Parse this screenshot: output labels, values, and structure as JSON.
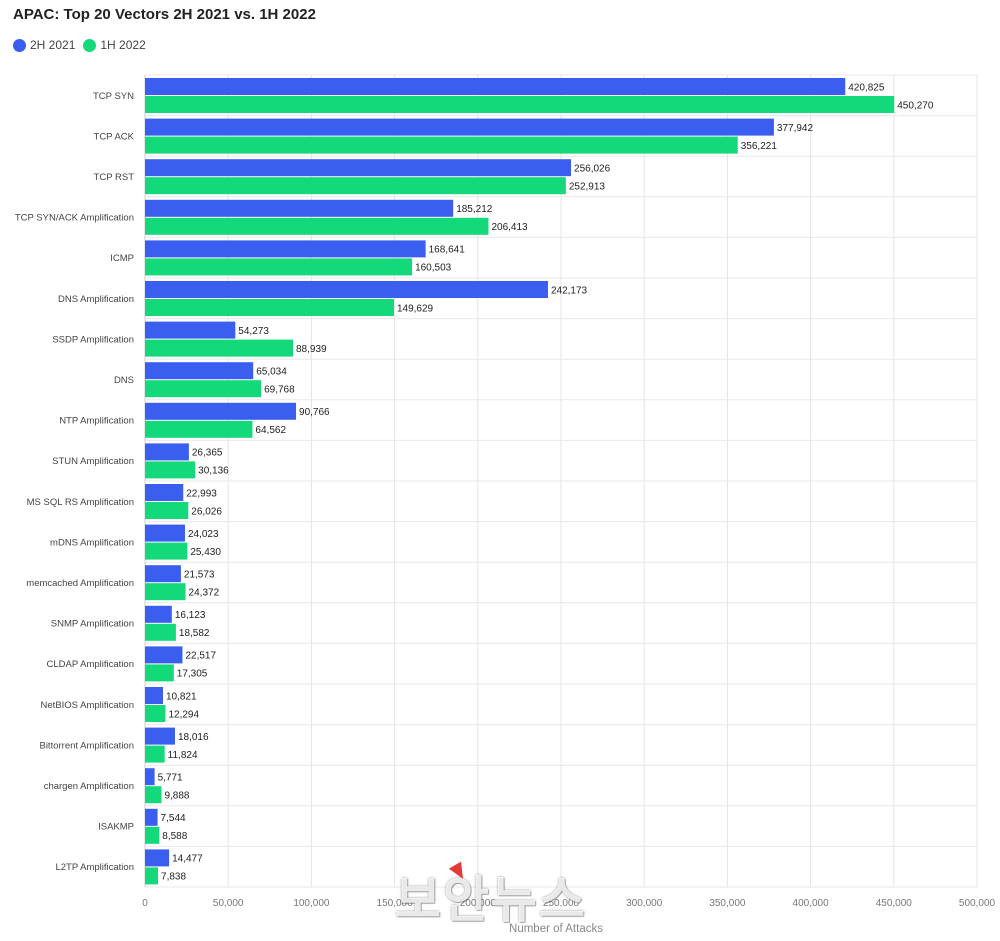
{
  "chart_data": {
    "type": "bar",
    "orientation": "horizontal",
    "title": "APAC: Top 20 Vectors 2H 2021 vs. 1H 2022",
    "xlabel": "Number of Attacks",
    "ylabel": "",
    "xlim": [
      0,
      500000
    ],
    "xticks": [
      0,
      50000,
      100000,
      150000,
      200000,
      250000,
      300000,
      350000,
      400000,
      450000,
      500000
    ],
    "xtick_labels": [
      "0",
      "50,000",
      "100,000",
      "150,000",
      "200,000",
      "250,000",
      "300,000",
      "350,000",
      "400,000",
      "450,000",
      "500,000"
    ],
    "grid": true,
    "legend_position": "top-left",
    "categories": [
      "TCP SYN",
      "TCP ACK",
      "TCP RST",
      "TCP SYN/ACK Amplification",
      "ICMP",
      "DNS Amplification",
      "SSDP Amplification",
      "DNS",
      "NTP Amplification",
      "STUN Amplification",
      "MS SQL RS Amplification",
      "mDNS Amplification",
      "memcached Amplification",
      "SNMP Amplification",
      "CLDAP Amplification",
      "NetBIOS Amplification",
      "Bittorrent Amplification",
      "chargen Amplification",
      "ISAKMP",
      "L2TP Amplification"
    ],
    "series": [
      {
        "name": "2H 2021",
        "color": "#3a5ef0",
        "values": [
          420825,
          377942,
          256026,
          185212,
          168641,
          242173,
          54273,
          65034,
          90766,
          26365,
          22993,
          24023,
          21573,
          16123,
          22517,
          10821,
          18016,
          5771,
          7544,
          14477
        ],
        "labels": [
          "420,825",
          "377,942",
          "256,026",
          "185,212",
          "168,641",
          "242,173",
          "54,273",
          "65,034",
          "90,766",
          "26,365",
          "22,993",
          "24,023",
          "21,573",
          "16,123",
          "22,517",
          "10,821",
          "18,016",
          "5,771",
          "7,544",
          "14,477"
        ]
      },
      {
        "name": "1H 2022",
        "color": "#14d97a",
        "values": [
          450270,
          356221,
          252913,
          206413,
          160503,
          149629,
          88939,
          69768,
          64562,
          30136,
          26026,
          25430,
          24372,
          18582,
          17305,
          12294,
          11824,
          9888,
          8588,
          7838
        ],
        "labels": [
          "450,270",
          "356,221",
          "252,913",
          "206,413",
          "160,503",
          "149,629",
          "88,939",
          "69,768",
          "64,562",
          "30,136",
          "26,026",
          "25,430",
          "24,372",
          "18,582",
          "17,305",
          "12,294",
          "11,824",
          "9,888",
          "8,588",
          "7,838"
        ]
      }
    ]
  },
  "watermark": "보안뉴스"
}
